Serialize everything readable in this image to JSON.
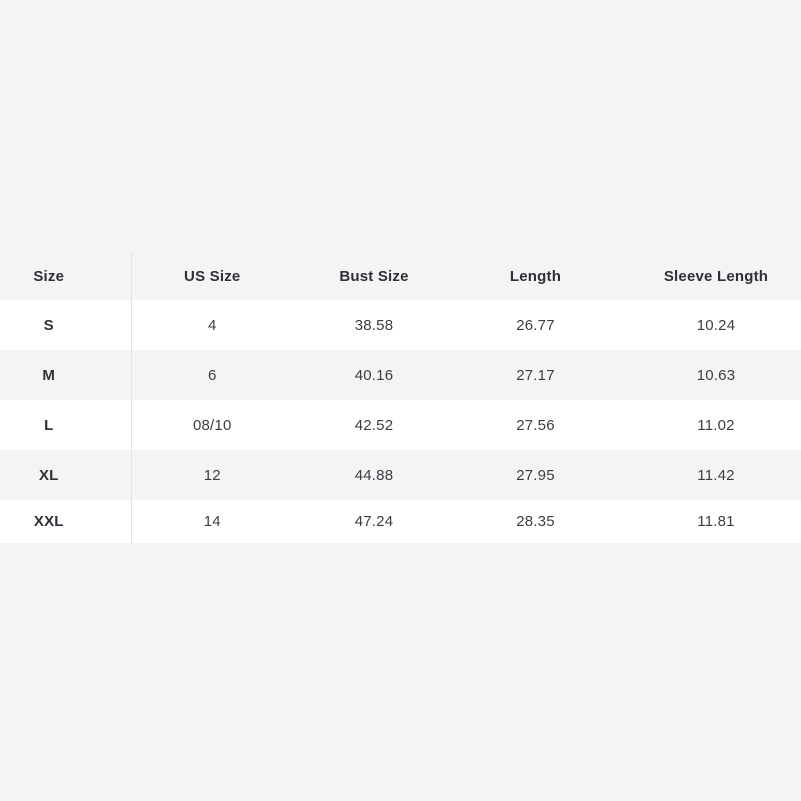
{
  "page": {
    "background_color": "#f4f4f5"
  },
  "size_chart": {
    "columns": [
      "Size",
      "US Size",
      "Bust Size",
      "Length",
      "Sleeve Length"
    ],
    "rows": [
      [
        "S",
        "4",
        "38.58",
        "26.77",
        "10.24"
      ],
      [
        "M",
        "6",
        "40.16",
        "27.17",
        "10.63"
      ],
      [
        "L",
        "08/10",
        "42.52",
        "27.56",
        "11.02"
      ],
      [
        "XL",
        "12",
        "44.88",
        "27.95",
        "11.42"
      ],
      [
        "XXL",
        "14",
        "47.24",
        "28.35",
        "11.81"
      ]
    ],
    "colors": {
      "stripe_gray": "#f4f4f5",
      "row_white": "#ffffff",
      "divider": "#e2e2e3",
      "header_text": "#2e3138",
      "cell_text": "#3a3d43"
    }
  }
}
